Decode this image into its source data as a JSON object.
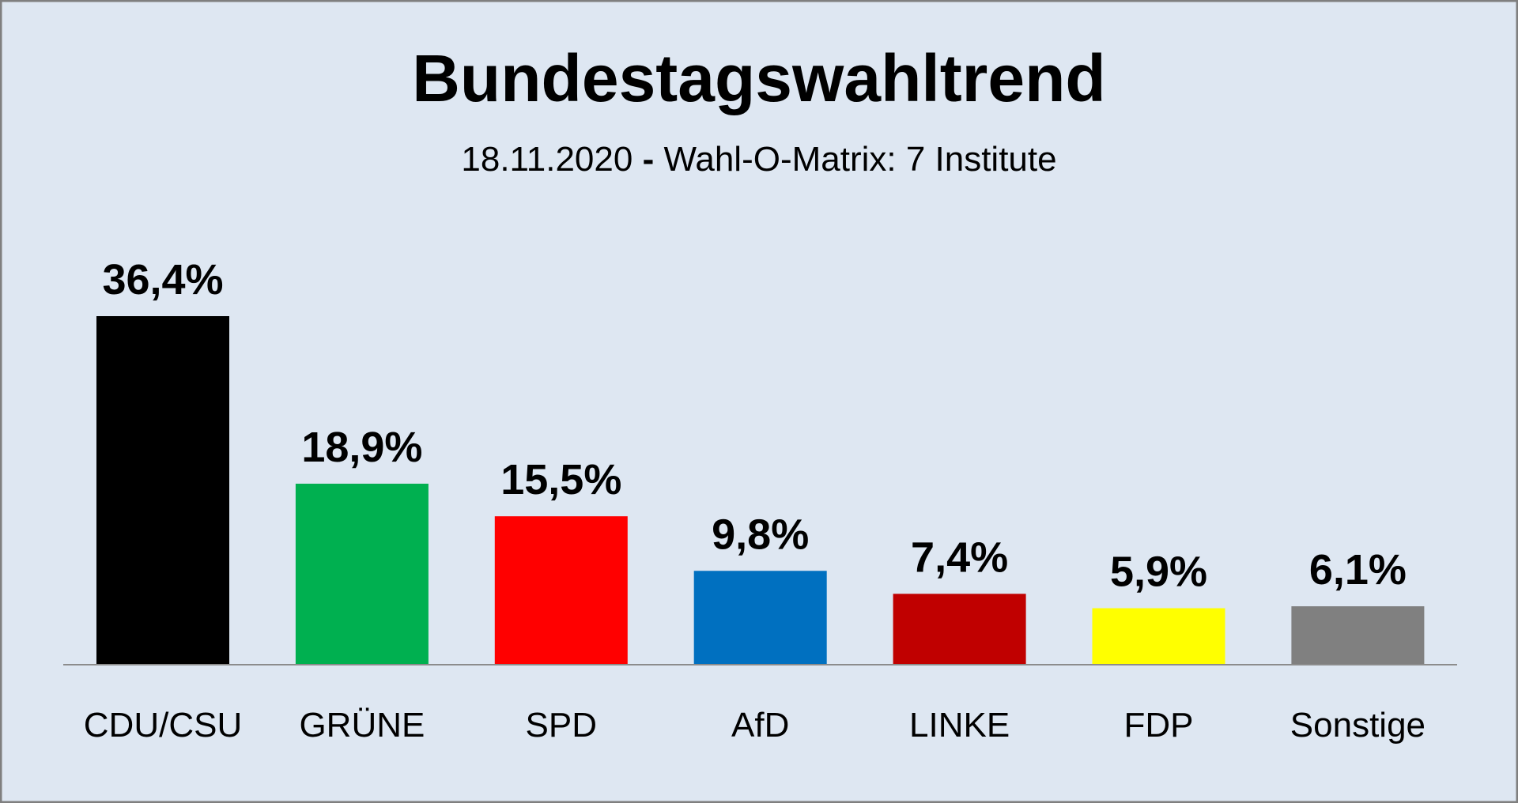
{
  "chart_data": {
    "type": "bar",
    "title": "Bundestagswahltrend",
    "subtitle_date": "18.11.2020",
    "subtitle_sep": "-",
    "subtitle_rest": "Wahl-O-Matrix: 7 Institute",
    "categories": [
      "CDU/CSU",
      "GRÜNE",
      "SPD",
      "AfD",
      "LINKE",
      "FDP",
      "Sonstige"
    ],
    "values": [
      36.4,
      18.9,
      15.5,
      9.8,
      7.4,
      5.9,
      6.1
    ],
    "value_labels": [
      "36,4%",
      "18,9%",
      "15,5%",
      "9,8%",
      "7,4%",
      "5,9%",
      "6,1%"
    ],
    "colors": [
      "#000000",
      "#00b050",
      "#ff0000",
      "#0070c0",
      "#c00000",
      "#ffff00",
      "#808080"
    ],
    "xlabel": "",
    "ylabel": "",
    "ylim": [
      0,
      36.4
    ],
    "grid": false,
    "legend": "none",
    "background": "#dee7f2"
  }
}
